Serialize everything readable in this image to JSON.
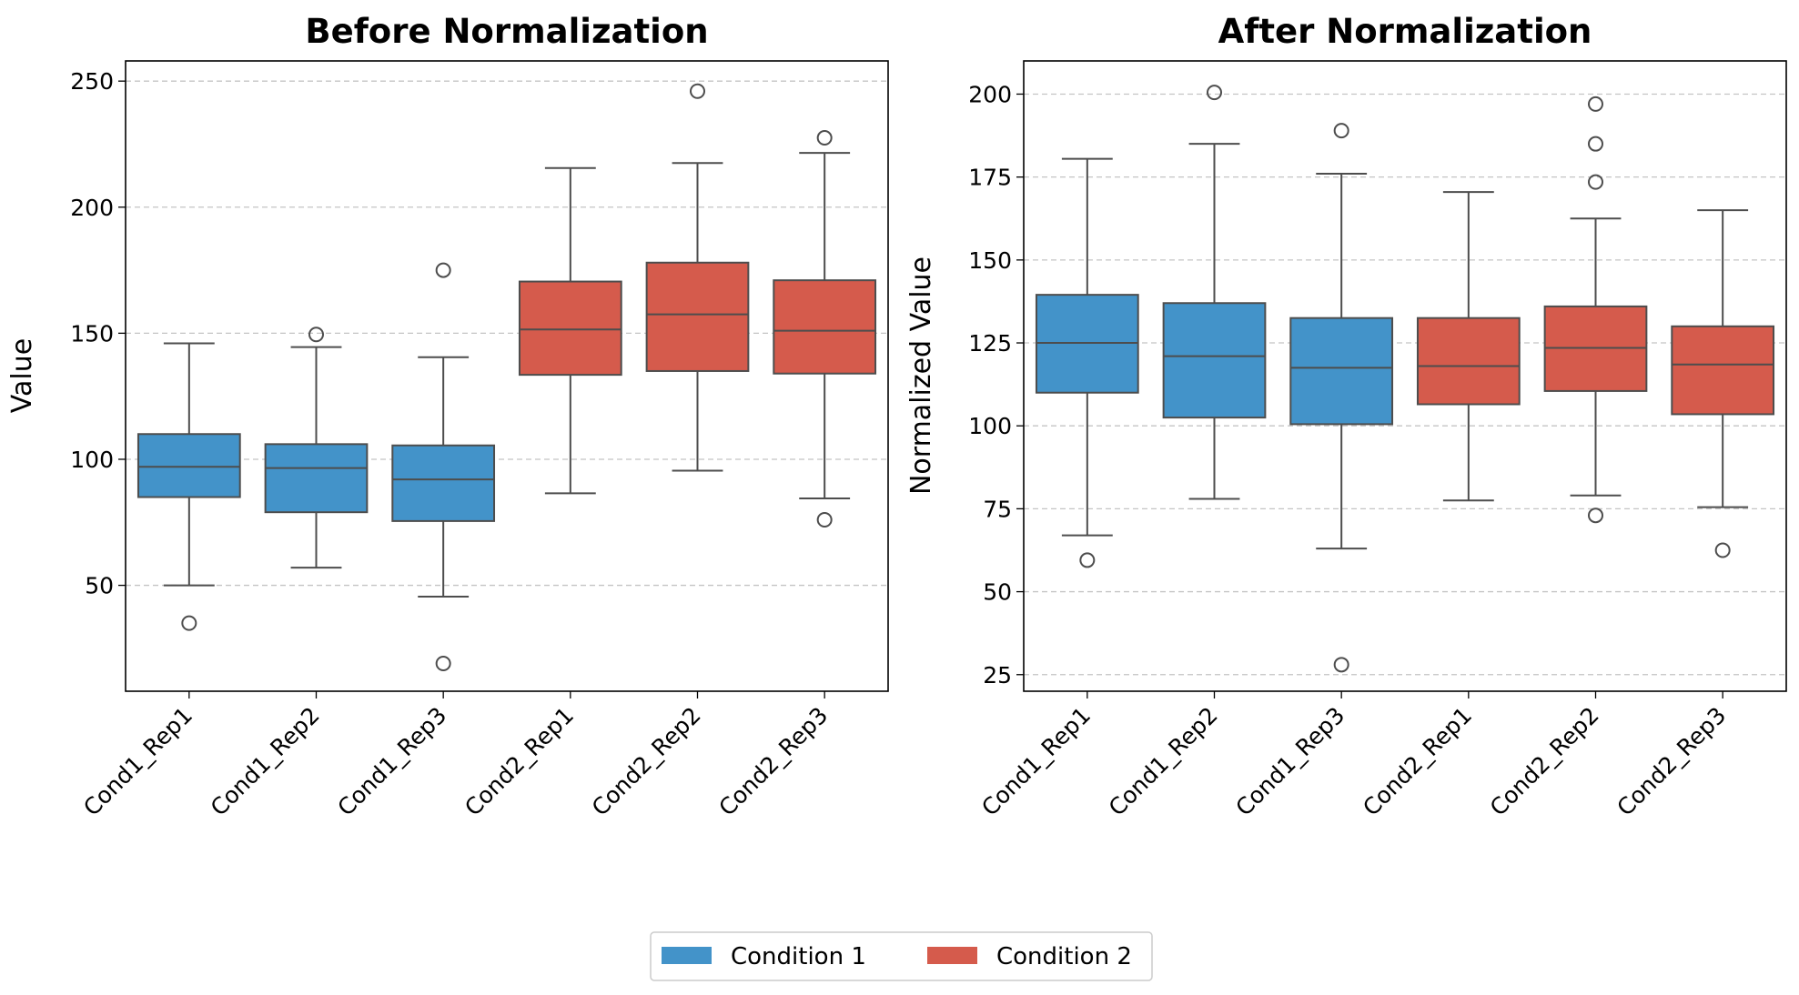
{
  "chart_data": [
    {
      "type": "box",
      "title": "Before Normalization",
      "xlabel": "",
      "ylabel": "Value",
      "ylim": [
        8,
        258
      ],
      "yticks": [
        50,
        100,
        150,
        200,
        250
      ],
      "grid": "y, dashed",
      "categories": [
        "Cond1_Rep1",
        "Cond1_Rep2",
        "Cond1_Rep3",
        "Cond2_Rep1",
        "Cond2_Rep2",
        "Cond2_Rep3"
      ],
      "groups": [
        "Condition 1",
        "Condition 1",
        "Condition 1",
        "Condition 2",
        "Condition 2",
        "Condition 2"
      ],
      "boxes": [
        {
          "whisker_low": 50,
          "q1": 85,
          "median": 97,
          "q3": 110,
          "whisker_high": 146,
          "outliers": [
            35
          ]
        },
        {
          "whisker_low": 57,
          "q1": 79,
          "median": 96.5,
          "q3": 106,
          "whisker_high": 144.5,
          "outliers": [
            149.5
          ]
        },
        {
          "whisker_low": 45.5,
          "q1": 75.5,
          "median": 92,
          "q3": 105.5,
          "whisker_high": 140.5,
          "outliers": [
            175,
            19
          ]
        },
        {
          "whisker_low": 86.5,
          "q1": 133.5,
          "median": 151.5,
          "q3": 170.5,
          "whisker_high": 215.5,
          "outliers": []
        },
        {
          "whisker_low": 95.5,
          "q1": 135,
          "median": 157.5,
          "q3": 178,
          "whisker_high": 217.5,
          "outliers": [
            246
          ]
        },
        {
          "whisker_low": 84.5,
          "q1": 134,
          "median": 151,
          "q3": 171,
          "whisker_high": 221.5,
          "outliers": [
            227.5,
            76
          ]
        }
      ]
    },
    {
      "type": "box",
      "title": "After Normalization",
      "xlabel": "",
      "ylabel": "Normalized Value",
      "ylim": [
        20,
        210
      ],
      "yticks": [
        25,
        50,
        75,
        100,
        125,
        150,
        175,
        200
      ],
      "grid": "y, dashed",
      "categories": [
        "Cond1_Rep1",
        "Cond1_Rep2",
        "Cond1_Rep3",
        "Cond2_Rep1",
        "Cond2_Rep2",
        "Cond2_Rep3"
      ],
      "groups": [
        "Condition 1",
        "Condition 1",
        "Condition 1",
        "Condition 2",
        "Condition 2",
        "Condition 2"
      ],
      "boxes": [
        {
          "whisker_low": 67,
          "q1": 110,
          "median": 125,
          "q3": 139.5,
          "whisker_high": 180.5,
          "outliers": [
            59.5
          ]
        },
        {
          "whisker_low": 78,
          "q1": 102.5,
          "median": 121,
          "q3": 137,
          "whisker_high": 185,
          "outliers": [
            200.5
          ]
        },
        {
          "whisker_low": 63,
          "q1": 100.5,
          "median": 117.5,
          "q3": 132.5,
          "whisker_high": 176,
          "outliers": [
            189,
            28
          ]
        },
        {
          "whisker_low": 77.5,
          "q1": 106.5,
          "median": 118,
          "q3": 132.5,
          "whisker_high": 170.5,
          "outliers": []
        },
        {
          "whisker_low": 79,
          "q1": 110.5,
          "median": 123.5,
          "q3": 136,
          "whisker_high": 162.5,
          "outliers": [
            197,
            185,
            173.5,
            73
          ]
        },
        {
          "whisker_low": 75.5,
          "q1": 103.5,
          "median": 118.5,
          "q3": 130,
          "whisker_high": 165,
          "outliers": [
            62.5
          ]
        }
      ]
    }
  ],
  "legend": {
    "placement": "bottom-center",
    "entries": [
      {
        "label": "Condition 1",
        "color": "#4393c9"
      },
      {
        "label": "Condition 2",
        "color": "#d55b4c"
      }
    ]
  },
  "colors": {
    "Condition 1": "#4393c9",
    "Condition 2": "#d55b4c",
    "line": "#4d4d4d",
    "grid": "#c4c4c4"
  }
}
